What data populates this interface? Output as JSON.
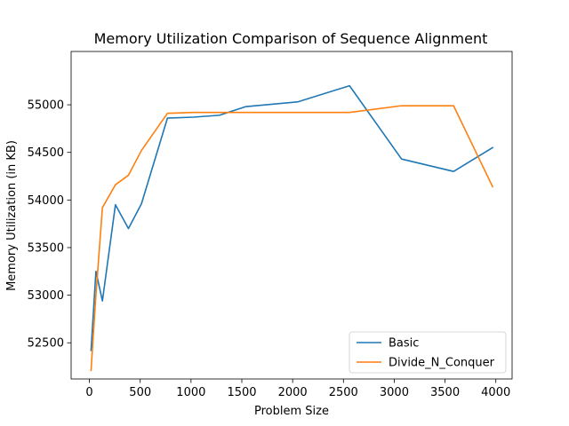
{
  "chart_data": {
    "type": "line",
    "title": "Memory Utilization Comparison of Sequence Alignment",
    "xlabel": "Problem Size",
    "ylabel": "Memory Utilization (in KB)",
    "xlim": [
      -180,
      4160
    ],
    "ylim": [
      52120,
      55560
    ],
    "xticks": [
      0,
      500,
      1000,
      1500,
      2000,
      2500,
      3000,
      3500,
      4000
    ],
    "xtick_labels": [
      "0",
      "500",
      "1000",
      "1500",
      "2000",
      "2500",
      "3000",
      "3500",
      "4000"
    ],
    "yticks": [
      52500,
      53000,
      53500,
      54000,
      54500,
      55000
    ],
    "ytick_labels": [
      "52500",
      "53000",
      "53500",
      "54000",
      "54500",
      "55000"
    ],
    "legend_position": "lower-right",
    "series": [
      {
        "name": "Basic",
        "color": "#1f77b4",
        "x": [
          16,
          64,
          128,
          256,
          384,
          512,
          768,
          1024,
          1280,
          1536,
          2048,
          2560,
          3072,
          3584,
          3968
        ],
        "y": [
          52420,
          53250,
          52940,
          53950,
          53700,
          53960,
          54860,
          54870,
          54890,
          54980,
          55030,
          55200,
          54430,
          54300,
          54550
        ]
      },
      {
        "name": "Divide_N_Conquer",
        "color": "#ff7f0e",
        "x": [
          16,
          64,
          128,
          256,
          384,
          512,
          768,
          1024,
          1280,
          1536,
          2048,
          2560,
          3072,
          3584,
          3968
        ],
        "y": [
          52210,
          53000,
          53920,
          54160,
          54260,
          54520,
          54910,
          54920,
          54920,
          54920,
          54920,
          54920,
          54990,
          54990,
          54140
        ]
      }
    ]
  }
}
